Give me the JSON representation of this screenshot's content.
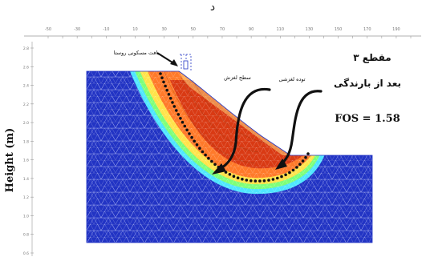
{
  "header": {
    "letter": "د"
  },
  "axis": {
    "y_label": "Height (m)",
    "top_ticks": [
      "-50",
      "-40",
      "-30",
      "-20",
      "-10",
      "0",
      "10",
      "20",
      "30",
      "40",
      "50",
      "60",
      "70",
      "80",
      "90",
      "100",
      "110",
      "120",
      "130",
      "140",
      "150",
      "160",
      "170",
      "180",
      "190",
      "200"
    ],
    "left_ticks": [
      "2.8",
      "2.6",
      "2.4",
      "2.2",
      "2.0",
      "1.8",
      "1.6",
      "1.4",
      "1.2",
      "1.0",
      "0.8",
      "0.6"
    ]
  },
  "legend_text": {
    "section": "مقطع ۳",
    "condition": "بعد از بارندگی",
    "fos": "FOS = 1.58"
  },
  "annotations": {
    "building": "بافت مسکونی روستا",
    "slip_surface": "سطح لغزش",
    "sliding_mass": "توده لغزشی"
  },
  "colors": {
    "background": "#2234c4",
    "mesh": "#bfc7ff",
    "slip_outer": "#ff7a2a",
    "slip_core": "#d93a14",
    "slip_edge_yellow": "#ffe34a",
    "halo_cyan": "#4ee6ff",
    "dots": "#111111"
  }
}
